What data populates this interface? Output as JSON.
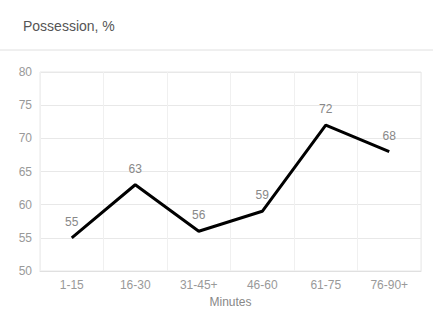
{
  "chart_data": {
    "type": "line",
    "title": "Possession, %",
    "x_label": "Minutes",
    "categories": [
      "1-15",
      "16-30",
      "31-45+",
      "46-60",
      "61-75",
      "76-90+"
    ],
    "values": [
      55,
      63,
      56,
      59,
      72,
      68
    ],
    "color": "#000000",
    "ylim": [
      50,
      80
    ],
    "yticks": [
      50,
      55,
      60,
      65,
      70,
      75,
      80
    ],
    "grid": true,
    "data_labels": true
  }
}
